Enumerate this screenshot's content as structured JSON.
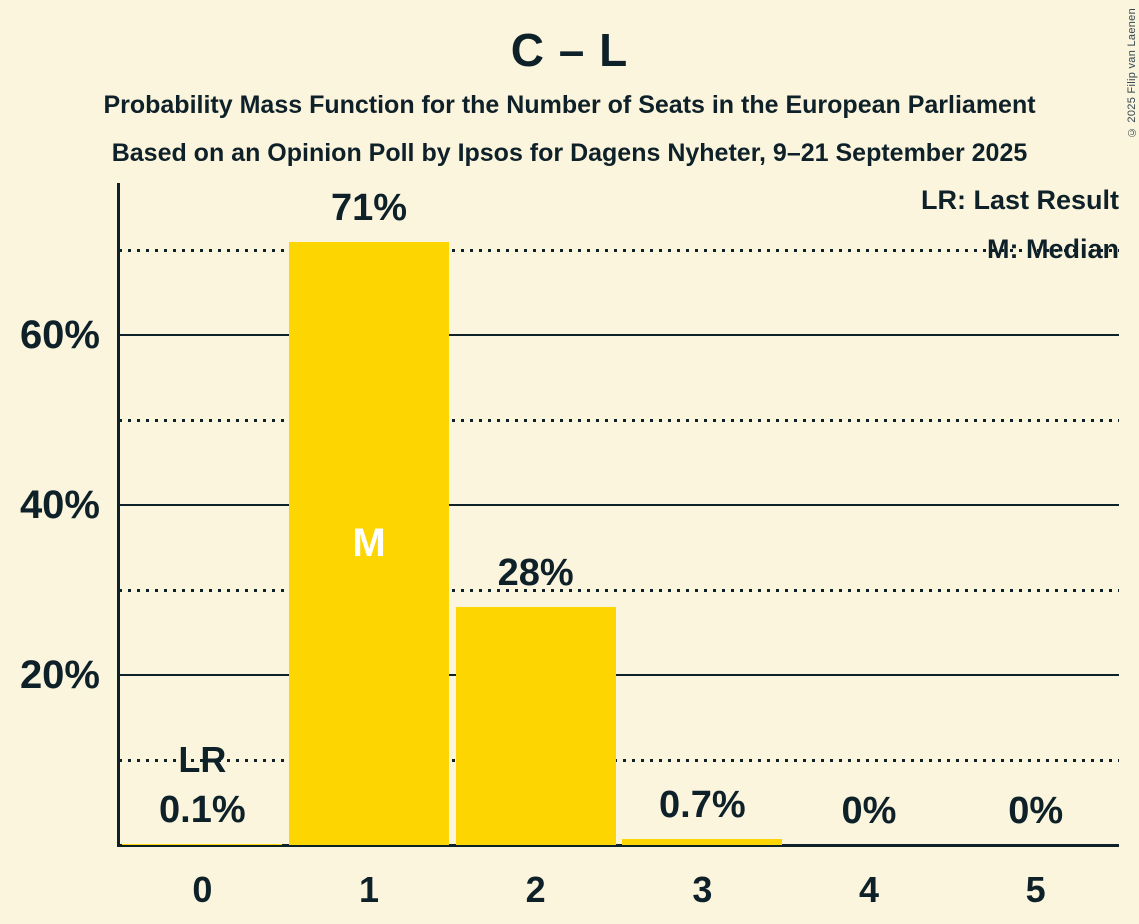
{
  "title": "C – L",
  "subtitle1": "Probability Mass Function for the Number of Seats in the European Parliament",
  "subtitle2": "Based on an Opinion Poll by Ipsos for Dagens Nyheter, 9–21 September 2025",
  "legend": {
    "last_result": "LR: Last Result",
    "median": "M: Median"
  },
  "copyright": "© 2025 Filip van Laenen",
  "colors": {
    "background": "#FCF5DE",
    "bar": "#FDD500",
    "text": "#0E2129",
    "median_label": "#FFFFFF"
  },
  "chart_data": {
    "type": "bar",
    "title": "C – L",
    "categories": [
      "0",
      "1",
      "2",
      "3",
      "4",
      "5"
    ],
    "values": [
      0.1,
      71,
      28,
      0.7,
      0,
      0
    ],
    "bar_labels": [
      "0.1%",
      "71%",
      "28%",
      "0.7%",
      "0%",
      "0%"
    ],
    "xlabel": "",
    "ylabel": "",
    "ylim": [
      0,
      77
    ],
    "yticks": [
      {
        "pct": 20,
        "label": "20%"
      },
      {
        "pct": 40,
        "label": "40%"
      },
      {
        "pct": 60,
        "label": "60%"
      }
    ],
    "dotted_gridlines_pct": [
      10,
      30,
      50,
      70
    ],
    "grid": "horizontal",
    "legend_position": "top-right",
    "annotations": {
      "last_result": {
        "seat_index": 0,
        "label": "LR",
        "at_pct": 10
      },
      "median": {
        "seat_index": 1,
        "label": "M"
      }
    }
  }
}
